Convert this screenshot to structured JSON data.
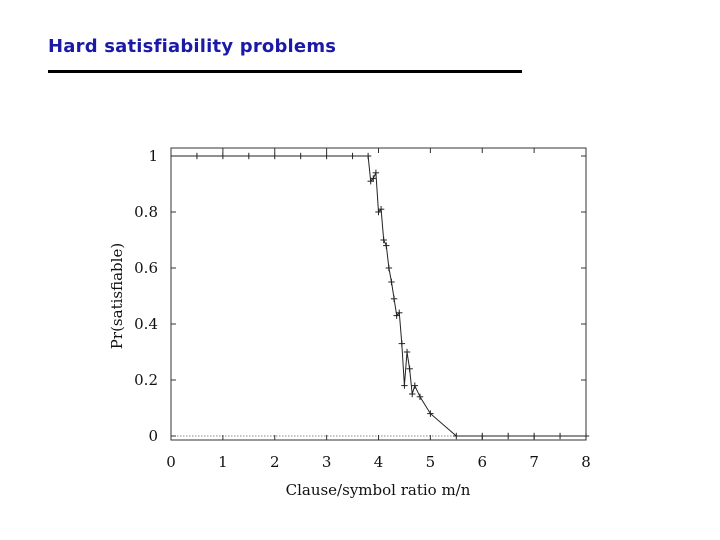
{
  "slide": {
    "title": "Hard satisfiability problems"
  },
  "chart_data": {
    "type": "line",
    "title": "",
    "xlabel": "Clause/symbol ratio m/n",
    "ylabel": "Pr(satisfiable)",
    "xlim": [
      0,
      8
    ],
    "ylim": [
      0,
      1
    ],
    "xticks": [
      0,
      1,
      2,
      3,
      4,
      5,
      6,
      7,
      8
    ],
    "yticks": [
      0,
      0.2,
      0.4,
      0.6,
      0.8,
      1
    ],
    "xtick_labels": [
      "0",
      "1",
      "2",
      "3",
      "4",
      "5",
      "6",
      "7",
      "8"
    ],
    "ytick_labels": [
      "0",
      "0.2",
      "0.4",
      "0.6",
      "0.8",
      "1"
    ],
    "grid": false,
    "line_color": "#222222",
    "series": [
      {
        "marker": "plus",
        "x": [
          0.5,
          1.0,
          1.5,
          2.0,
          2.5,
          3.0,
          3.5,
          3.8,
          3.85,
          3.9,
          3.95,
          4.0,
          4.05,
          4.1,
          4.15,
          4.2,
          4.25,
          4.3,
          4.35,
          4.4,
          4.45,
          4.5,
          4.55,
          4.6,
          4.65,
          4.7,
          4.8,
          5.0,
          5.5,
          6.0,
          6.5,
          7.0,
          7.5,
          8.0
        ],
        "y": [
          1.0,
          1.0,
          1.0,
          1.0,
          1.0,
          1.0,
          1.0,
          1.0,
          0.91,
          0.92,
          0.94,
          0.8,
          0.81,
          0.7,
          0.68,
          0.6,
          0.55,
          0.49,
          0.43,
          0.44,
          0.33,
          0.18,
          0.3,
          0.24,
          0.15,
          0.18,
          0.14,
          0.08,
          0.0,
          0.0,
          0.0,
          0.0,
          0.0,
          0.0
        ]
      }
    ]
  }
}
